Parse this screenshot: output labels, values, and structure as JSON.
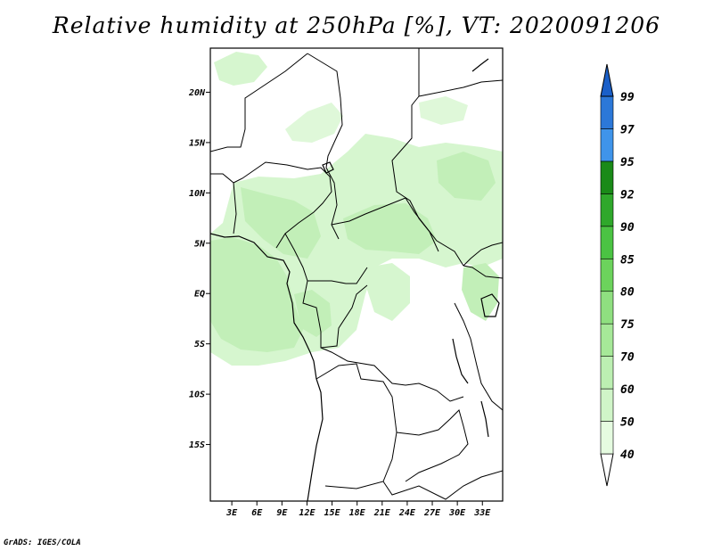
{
  "title": "Relative humidity at 250hPa [%], VT: 2020091206",
  "credit": "GrADS: IGES/COLA",
  "map": {
    "lon_range": [
      0,
      35
    ],
    "lat_range": [
      -20,
      25
    ],
    "x_ticks": [
      "3E",
      "6E",
      "9E",
      "12E",
      "15E",
      "18E",
      "21E",
      "24E",
      "27E",
      "30E",
      "33E"
    ],
    "x_tick_values": [
      3,
      6,
      9,
      12,
      15,
      18,
      21,
      24,
      27,
      30,
      33
    ],
    "y_ticks": [
      "20N",
      "15N",
      "10N",
      "5N",
      "EQ",
      "5S",
      "10S",
      "15S"
    ],
    "y_tick_values": [
      20,
      15,
      10,
      5,
      0,
      -5,
      -10,
      -15
    ]
  },
  "colorbar": {
    "levels": [
      "40",
      "50",
      "60",
      "70",
      "75",
      "80",
      "85",
      "90",
      "92",
      "95",
      "97",
      "99"
    ],
    "colors": [
      "#ffffff",
      "#e5fbe0",
      "#d0f5c8",
      "#bcefb2",
      "#a6e898",
      "#8fdf80",
      "#6cd35c",
      "#4bc343",
      "#2fa82b",
      "#1a8a18",
      "#3f94ea",
      "#2c78d8",
      "#1a5fc8"
    ]
  },
  "fields": {
    "light_green": "#d6f6cf",
    "mid_green": "#c2efb8",
    "darker_green": "#b2eaa6"
  }
}
